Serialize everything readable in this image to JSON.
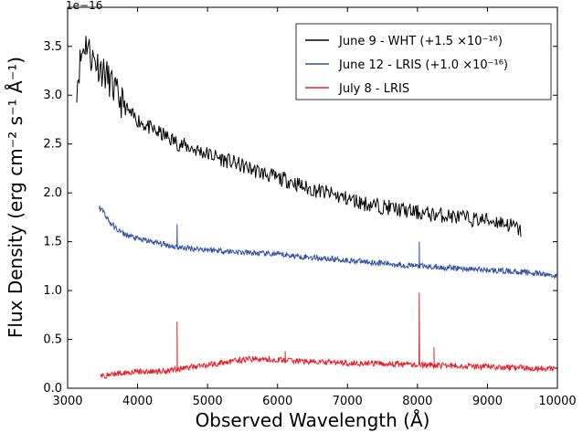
{
  "chart_data": {
    "type": "line",
    "xlabel": "Observed Wavelength (Å)",
    "ylabel": "Flux Density (erg cm⁻² s⁻¹ Å⁻¹)",
    "offset_text": "1e−16",
    "xlim": [
      3000,
      10000
    ],
    "ylim": [
      0.0,
      3.9
    ],
    "xticks": [
      "3000",
      "4000",
      "5000",
      "6000",
      "7000",
      "8000",
      "9000",
      "10000"
    ],
    "yticks": [
      "0.0",
      "0.5",
      "1.0",
      "1.5",
      "2.0",
      "2.5",
      "3.0",
      "3.5"
    ],
    "grid": false,
    "legend_position": "top-right",
    "series": [
      {
        "name": "June 9 - WHT (+1.5 ×10⁻¹⁶)",
        "color": "#000000",
        "x": [
          3130,
          3180,
          3230,
          3280,
          3330,
          3400,
          3500,
          3600,
          3700,
          3800,
          3900,
          4000,
          4200,
          4400,
          4600,
          4800,
          5000,
          5200,
          5400,
          5600,
          5800,
          6000,
          6200,
          6400,
          6600,
          6800,
          7000,
          7200,
          7400,
          7600,
          7800,
          8000,
          8200,
          8400,
          8600,
          8800,
          9000,
          9200,
          9400,
          9480
        ],
        "values": [
          3.1,
          3.35,
          3.5,
          3.55,
          3.4,
          3.35,
          3.25,
          3.15,
          3.0,
          2.9,
          2.8,
          2.75,
          2.65,
          2.58,
          2.5,
          2.45,
          2.4,
          2.35,
          2.3,
          2.25,
          2.2,
          2.15,
          2.12,
          2.05,
          2.02,
          1.98,
          1.94,
          1.9,
          1.87,
          1.85,
          1.82,
          1.8,
          1.78,
          1.77,
          1.75,
          1.73,
          1.72,
          1.7,
          1.65,
          1.6
        ]
      },
      {
        "name": "June 12 - LRIS (+1.0 ×10⁻¹⁶)",
        "color": "#3050a8",
        "x": [
          3450,
          3500,
          3600,
          3700,
          3800,
          4000,
          4200,
          4400,
          4600,
          4800,
          5000,
          5500,
          6000,
          6500,
          7000,
          7500,
          8000,
          8500,
          9000,
          9500,
          10000
        ],
        "values": [
          1.85,
          1.82,
          1.7,
          1.63,
          1.58,
          1.53,
          1.5,
          1.47,
          1.44,
          1.43,
          1.42,
          1.39,
          1.37,
          1.34,
          1.31,
          1.28,
          1.25,
          1.23,
          1.21,
          1.19,
          1.15
        ]
      },
      {
        "name": "July 8 - LRIS",
        "color": "#e8202a",
        "x": [
          3470,
          3600,
          3800,
          4000,
          4200,
          4400,
          4600,
          4800,
          5000,
          5400,
          5600,
          6000,
          6500,
          7000,
          7500,
          8000,
          8500,
          9000,
          9500,
          10000
        ],
        "values": [
          0.12,
          0.14,
          0.16,
          0.17,
          0.17,
          0.18,
          0.2,
          0.22,
          0.24,
          0.28,
          0.3,
          0.29,
          0.27,
          0.26,
          0.25,
          0.24,
          0.23,
          0.22,
          0.21,
          0.2
        ]
      }
    ],
    "features": [
      {
        "series": 1,
        "x": 4565,
        "peak": 1.68
      },
      {
        "series": 1,
        "x": 8025,
        "peak": 1.5
      },
      {
        "series": 2,
        "x": 4565,
        "peak": 0.68
      },
      {
        "series": 2,
        "x": 8025,
        "peak": 0.98
      },
      {
        "series": 2,
        "x": 8235,
        "peak": 0.42
      },
      {
        "series": 2,
        "x": 6110,
        "peak": 0.38
      }
    ]
  }
}
